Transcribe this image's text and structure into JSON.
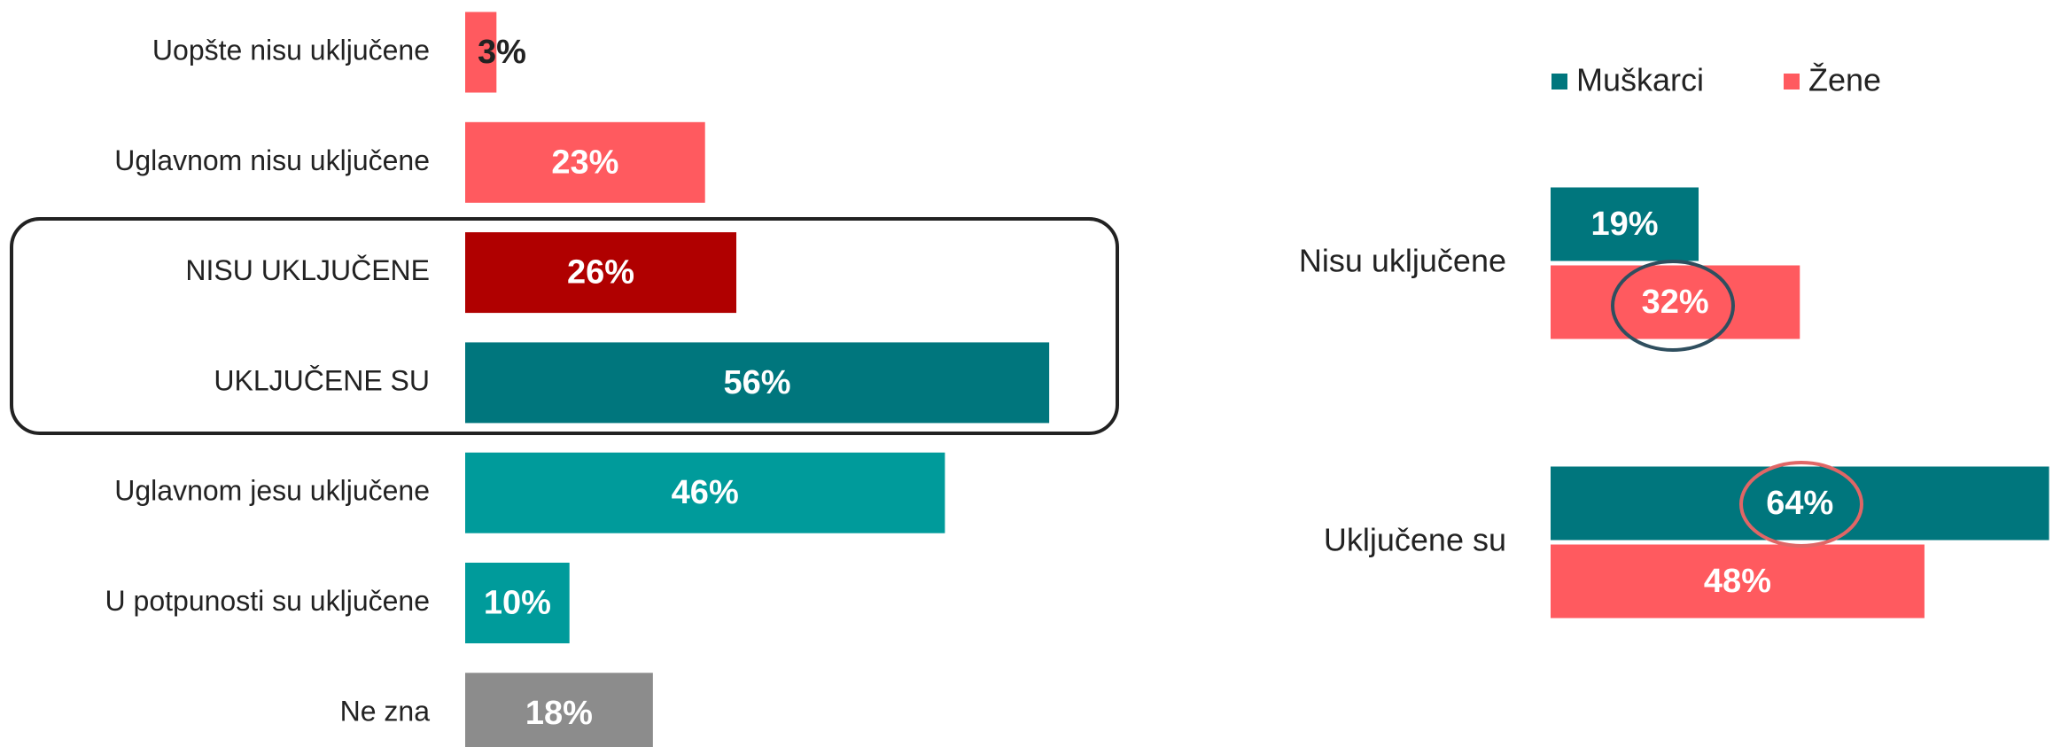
{
  "chart_data": [
    {
      "type": "bar",
      "categories": [
        "Uopšte nisu uključene",
        "Uglavnom nisu uključene",
        "NISU UKLJUČENE",
        "UKLJUČENE SU",
        "Uglavnom jesu uključene",
        "U potpunosti su uključene",
        "Ne zna"
      ],
      "values": [
        3,
        23,
        26,
        56,
        46,
        10,
        18
      ],
      "value_labels": [
        "3%",
        "23%",
        "26%",
        "56%",
        "46%",
        "10%",
        "18%"
      ],
      "colors": [
        "#ff5a5f",
        "#ff5a5f",
        "#b00000",
        "#00767d",
        "#009b9b",
        "#009b9b",
        "#8c8c8c"
      ]
    },
    {
      "type": "grouped_bar",
      "categories": [
        "Nisu uključene",
        "Uključene su"
      ],
      "series": [
        {
          "name": "Muškarci",
          "color": "#00767d",
          "values": [
            19,
            64
          ],
          "value_labels": [
            "19%",
            "64%"
          ]
        },
        {
          "name": "Žene",
          "color": "#ff5a5f",
          "values": [
            32,
            48
          ],
          "value_labels": [
            "32%",
            "48%"
          ]
        }
      ],
      "legend": "top"
    }
  ]
}
